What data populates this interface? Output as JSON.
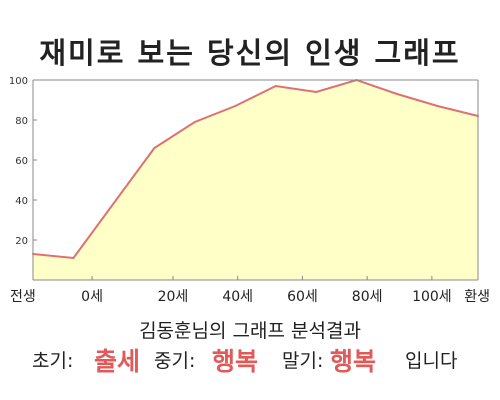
{
  "title": "재미로 보는 당신의 인생 그래프",
  "chart_data": {
    "type": "area",
    "x": [
      0,
      1,
      3,
      4,
      5,
      6,
      7,
      8,
      9,
      10,
      11
    ],
    "y": [
      13,
      11,
      66,
      79,
      87,
      97,
      94,
      100,
      93,
      87,
      82
    ],
    "ylim": [
      0,
      100
    ],
    "xlim": [
      0,
      11
    ],
    "yticks": [
      20,
      40,
      60,
      80,
      100
    ],
    "xticks": [
      {
        "x": 0,
        "label": "전생"
      },
      {
        "x": 1.46,
        "label": "0세"
      },
      {
        "x": 3.46,
        "label": "20세"
      },
      {
        "x": 5.06,
        "label": "40세"
      },
      {
        "x": 6.66,
        "label": "60세"
      },
      {
        "x": 8.26,
        "label": "80세"
      },
      {
        "x": 9.86,
        "label": "100세"
      },
      {
        "x": 11,
        "label": "환생"
      }
    ],
    "grid": false,
    "fill_color": "#ffffc8",
    "line_color": "#e07070"
  },
  "summary": "김동훈님의 그래프 분석결과",
  "result": {
    "early_label": "초기:",
    "early_value": "출세",
    "middle_label": "중기:",
    "middle_value": "행복",
    "late_label": "말기:",
    "late_value": "행복",
    "ending": "입니다"
  },
  "colors": {
    "highlight": "#e05a5a",
    "axis": "#888888"
  }
}
